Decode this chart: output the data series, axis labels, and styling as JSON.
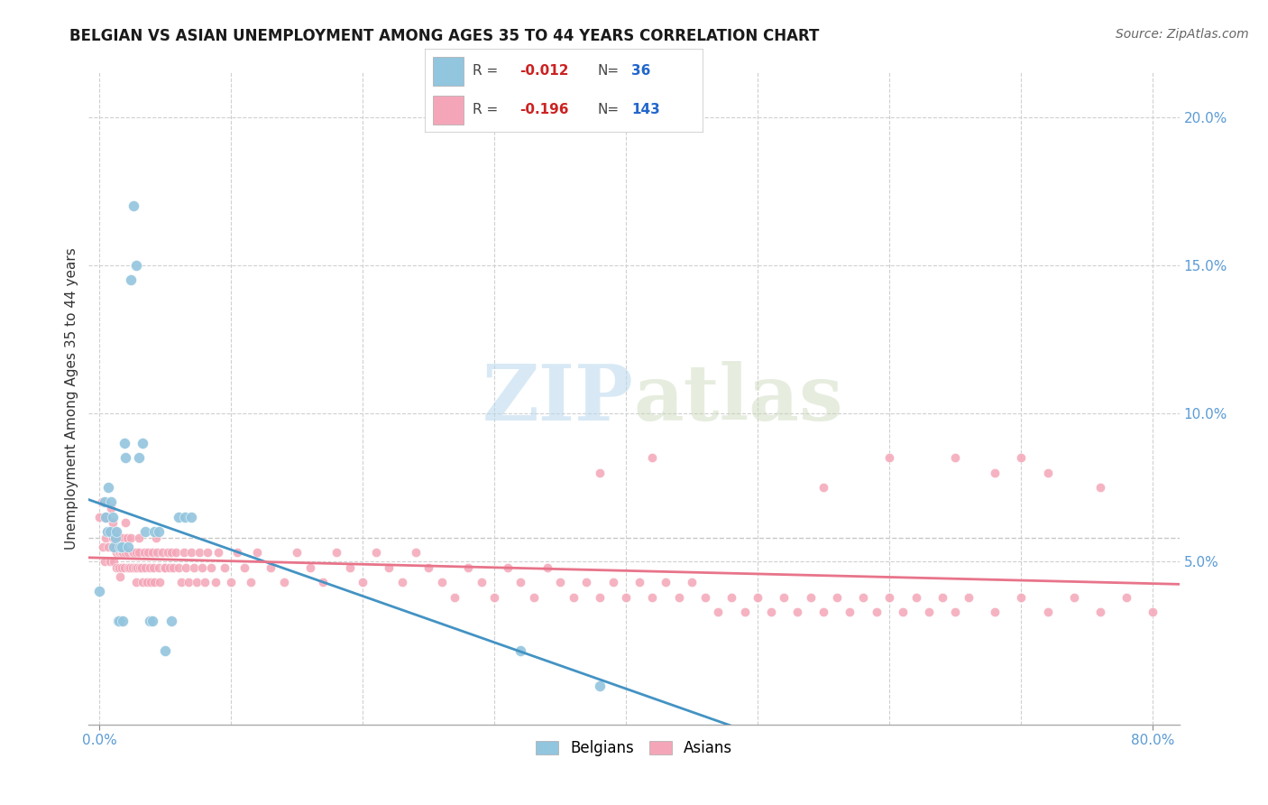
{
  "title": "BELGIAN VS ASIAN UNEMPLOYMENT AMONG AGES 35 TO 44 YEARS CORRELATION CHART",
  "source": "Source: ZipAtlas.com",
  "ylabel": "Unemployment Among Ages 35 to 44 years",
  "watermark_zip": "ZIP",
  "watermark_atlas": "atlas",
  "legend_belgian_R": "-0.012",
  "legend_belgian_N": "36",
  "legend_asian_R": "-0.196",
  "legend_asian_N": "143",
  "belgian_color": "#92c5de",
  "asian_color": "#f4a6b8",
  "belgian_line_color": "#4393c3",
  "asian_line_color": "#e8748a",
  "bg_color": "#ffffff",
  "grid_color": "#d0d0d0",
  "tick_color": "#5b9bd5",
  "title_color": "#1a1a1a",
  "ylabel_color": "#333333",
  "source_color": "#666666",
  "ylim_min": -0.005,
  "ylim_max": 0.215,
  "xlim_min": -0.008,
  "xlim_max": 0.82,
  "yticks": [
    0.05,
    0.1,
    0.15,
    0.2
  ],
  "ytick_labels": [
    "5.0%",
    "10.0%",
    "15.0%",
    "20.0%"
  ],
  "xtick_left": 0.0,
  "xtick_right": 0.8,
  "xtick_left_label": "0.0%",
  "xtick_right_label": "80.0%",
  "bel_x": [
    0.0,
    0.004,
    0.005,
    0.006,
    0.007,
    0.008,
    0.009,
    0.01,
    0.011,
    0.012,
    0.013,
    0.014,
    0.015,
    0.016,
    0.017,
    0.018,
    0.019,
    0.02,
    0.022,
    0.024,
    0.026,
    0.028,
    0.03,
    0.033,
    0.035,
    0.038,
    0.04,
    0.042,
    0.045,
    0.05,
    0.055,
    0.06,
    0.065,
    0.07,
    0.32,
    0.38
  ],
  "bel_y": [
    0.04,
    0.07,
    0.065,
    0.06,
    0.075,
    0.06,
    0.07,
    0.065,
    0.055,
    0.058,
    0.06,
    0.03,
    0.03,
    0.055,
    0.055,
    0.03,
    0.09,
    0.085,
    0.055,
    0.145,
    0.17,
    0.15,
    0.085,
    0.09,
    0.06,
    0.03,
    0.03,
    0.06,
    0.06,
    0.02,
    0.03,
    0.065,
    0.065,
    0.065,
    0.02,
    0.008
  ],
  "asian_x": [
    0.0,
    0.002,
    0.003,
    0.004,
    0.005,
    0.005,
    0.006,
    0.007,
    0.008,
    0.009,
    0.01,
    0.01,
    0.011,
    0.011,
    0.012,
    0.012,
    0.013,
    0.013,
    0.014,
    0.015,
    0.015,
    0.016,
    0.016,
    0.017,
    0.017,
    0.018,
    0.018,
    0.019,
    0.02,
    0.02,
    0.021,
    0.022,
    0.022,
    0.023,
    0.024,
    0.025,
    0.025,
    0.026,
    0.027,
    0.028,
    0.028,
    0.029,
    0.03,
    0.03,
    0.031,
    0.032,
    0.033,
    0.034,
    0.035,
    0.036,
    0.037,
    0.038,
    0.039,
    0.04,
    0.041,
    0.042,
    0.043,
    0.044,
    0.045,
    0.046,
    0.048,
    0.049,
    0.05,
    0.052,
    0.053,
    0.055,
    0.056,
    0.058,
    0.06,
    0.062,
    0.064,
    0.066,
    0.068,
    0.07,
    0.072,
    0.074,
    0.076,
    0.078,
    0.08,
    0.082,
    0.085,
    0.088,
    0.09,
    0.095,
    0.1,
    0.105,
    0.11,
    0.115,
    0.12,
    0.13,
    0.14,
    0.15,
    0.16,
    0.17,
    0.18,
    0.19,
    0.2,
    0.21,
    0.22,
    0.23,
    0.24,
    0.25,
    0.26,
    0.27,
    0.28,
    0.29,
    0.3,
    0.31,
    0.32,
    0.33,
    0.34,
    0.35,
    0.36,
    0.37,
    0.38,
    0.39,
    0.4,
    0.41,
    0.42,
    0.43,
    0.44,
    0.45,
    0.46,
    0.47,
    0.48,
    0.49,
    0.5,
    0.51,
    0.52,
    0.53,
    0.54,
    0.55,
    0.56,
    0.57,
    0.58,
    0.59,
    0.6,
    0.61,
    0.62,
    0.63,
    0.64,
    0.65,
    0.66,
    0.68,
    0.7,
    0.72,
    0.74,
    0.76,
    0.78,
    0.8
  ],
  "asian_y": [
    0.065,
    0.07,
    0.055,
    0.05,
    0.065,
    0.058,
    0.06,
    0.055,
    0.05,
    0.068,
    0.063,
    0.058,
    0.05,
    0.055,
    0.055,
    0.06,
    0.053,
    0.048,
    0.058,
    0.053,
    0.048,
    0.053,
    0.045,
    0.053,
    0.048,
    0.058,
    0.053,
    0.048,
    0.063,
    0.053,
    0.058,
    0.053,
    0.048,
    0.048,
    0.058,
    0.053,
    0.048,
    0.053,
    0.048,
    0.043,
    0.053,
    0.048,
    0.058,
    0.053,
    0.048,
    0.048,
    0.043,
    0.053,
    0.048,
    0.043,
    0.053,
    0.048,
    0.043,
    0.053,
    0.048,
    0.043,
    0.058,
    0.053,
    0.048,
    0.043,
    0.053,
    0.048,
    0.048,
    0.053,
    0.048,
    0.053,
    0.048,
    0.053,
    0.048,
    0.043,
    0.053,
    0.048,
    0.043,
    0.053,
    0.048,
    0.043,
    0.053,
    0.048,
    0.043,
    0.053,
    0.048,
    0.043,
    0.053,
    0.048,
    0.043,
    0.053,
    0.048,
    0.043,
    0.053,
    0.048,
    0.043,
    0.053,
    0.048,
    0.043,
    0.053,
    0.048,
    0.043,
    0.053,
    0.048,
    0.043,
    0.053,
    0.048,
    0.043,
    0.038,
    0.048,
    0.043,
    0.038,
    0.048,
    0.043,
    0.038,
    0.048,
    0.043,
    0.038,
    0.043,
    0.038,
    0.043,
    0.038,
    0.043,
    0.038,
    0.043,
    0.038,
    0.043,
    0.038,
    0.033,
    0.038,
    0.033,
    0.038,
    0.033,
    0.038,
    0.033,
    0.038,
    0.033,
    0.038,
    0.033,
    0.038,
    0.033,
    0.038,
    0.033,
    0.038,
    0.033,
    0.038,
    0.033,
    0.038,
    0.033,
    0.038,
    0.033,
    0.038,
    0.033,
    0.038,
    0.033
  ],
  "asian_outlier_x": [
    0.38,
    0.42,
    0.55,
    0.6,
    0.65,
    0.68,
    0.7,
    0.72,
    0.76
  ],
  "asian_outlier_y": [
    0.08,
    0.085,
    0.075,
    0.085,
    0.085,
    0.08,
    0.085,
    0.08,
    0.075
  ],
  "ref_line_y": 0.058,
  "ref_line_color": "#b0b0b0",
  "title_fontsize": 12,
  "source_fontsize": 10,
  "ylabel_fontsize": 11,
  "tick_fontsize": 11,
  "legend_fontsize": 11
}
